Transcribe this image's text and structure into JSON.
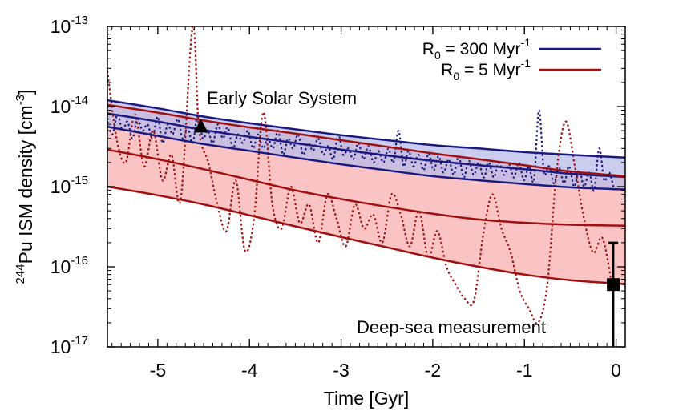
{
  "chart_data": {
    "type": "line",
    "xlabel": "Time [Gyr]",
    "ylabel": {
      "sup": "244",
      "main": "Pu ISM density [cm",
      "exp": "-3",
      "close": "]"
    },
    "xlim": [
      -5.55,
      0.1
    ],
    "ylim": [
      1e-17,
      1e-13
    ],
    "y_scale": "log",
    "grid": false,
    "legend_placement": "top-right",
    "x_ticks": [
      {
        "value": -5,
        "label": "-5"
      },
      {
        "value": -4,
        "label": "-4"
      },
      {
        "value": -3,
        "label": "-3"
      },
      {
        "value": -2,
        "label": "-2"
      },
      {
        "value": -1,
        "label": "-1"
      },
      {
        "value": 0,
        "label": "0"
      }
    ],
    "y_ticks": [
      {
        "value": 1e-17,
        "base": "10",
        "exp": "-17"
      },
      {
        "value": 1e-16,
        "base": "10",
        "exp": "-16"
      },
      {
        "value": 1e-15,
        "base": "10",
        "exp": "-15"
      },
      {
        "value": 1e-14,
        "base": "10",
        "exp": "-14"
      },
      {
        "value": 1e-13,
        "base": "10",
        "exp": "-13"
      }
    ],
    "legend": [
      {
        "base": "R",
        "sub": "0",
        "text": " = 300 Myr",
        "exp": "-1",
        "color": "#1a1a80"
      },
      {
        "base": "R",
        "sub": "0",
        "text": " =     5 Myr",
        "exp": "-1",
        "color": "#a01010"
      }
    ],
    "bands": [
      {
        "series": "R0 = 300 Myr-1",
        "fill": "#b8bce8",
        "stroke": "#1a1a80",
        "x": [
          -5.55,
          -5,
          -4.5,
          -4,
          -3.5,
          -3,
          -2.5,
          -2,
          -1.5,
          -1,
          -0.5,
          0
        ],
        "upper": [
          1.2e-14,
          9.5e-15,
          7.5e-15,
          6.2e-15,
          5.2e-15,
          4.4e-15,
          3.8e-15,
          3.3e-15,
          3e-15,
          2.7e-15,
          2.5e-15,
          2.3e-15
        ],
        "median": [
          8.2e-15,
          6.5e-15,
          5.1e-15,
          4.2e-15,
          3.5e-15,
          2.9e-15,
          2.45e-15,
          2.1e-15,
          1.85e-15,
          1.65e-15,
          1.45e-15,
          1.32e-15
        ],
        "lower": [
          5.6e-15,
          4.3e-15,
          3.4e-15,
          2.8e-15,
          2.3e-15,
          1.9e-15,
          1.6e-15,
          1.35e-15,
          1.2e-15,
          1.08e-15,
          9.8e-16,
          9.2e-16
        ]
      },
      {
        "series": "R0 = 5 Myr-1",
        "fill": "#fbc4c4",
        "stroke": "#a01010",
        "x": [
          -5.55,
          -5,
          -4.5,
          -4,
          -3.5,
          -3,
          -2.5,
          -2,
          -1.5,
          -1,
          -0.5,
          0
        ],
        "upper": [
          1.05e-14,
          8.4e-15,
          6.7e-15,
          5.5e-15,
          4.6e-15,
          3.8e-15,
          3.15e-15,
          2.6e-15,
          2.2e-15,
          1.85e-15,
          1.55e-15,
          1.35e-15
        ],
        "median": [
          2.9e-15,
          2.2e-15,
          1.65e-15,
          1.22e-15,
          9e-16,
          7e-16,
          5.6e-16,
          4.6e-16,
          3.9e-16,
          3.55e-16,
          3.35e-16,
          3.25e-16
        ],
        "lower": [
          1e-15,
          7.8e-16,
          6e-16,
          4.4e-16,
          3.2e-16,
          2.35e-16,
          1.75e-16,
          1.3e-16,
          1e-16,
          8e-17,
          6.8e-17,
          6.1e-17
        ]
      }
    ],
    "dotted_series": [
      {
        "series": "R0 = 300 Myr-1 sample",
        "color": "#1a1a80",
        "x_start": -5.55,
        "x_end": -0.02,
        "values": [
          6.5e-15,
          4.5e-15,
          8e-15,
          5e-15,
          6.5e-15,
          4e-15,
          7e-15,
          5e-15,
          6e-15,
          4e-15,
          7.5e-15,
          3.5e-15,
          6e-15,
          4.5e-15,
          7e-15,
          4e-15,
          5.5e-15,
          3.5e-15,
          8e-15,
          4e-15,
          5e-15,
          3.5e-15,
          6e-15,
          4e-15,
          5.5e-15,
          3e-15,
          4.5e-15,
          3.5e-15,
          5e-15,
          3e-15,
          4.5e-15,
          3e-15,
          4e-15,
          3e-15,
          5e-15,
          2.5e-15,
          4e-15,
          3e-15,
          4.5e-15,
          2.5e-15,
          3.5e-15,
          2.8e-15,
          4e-15,
          2.5e-15,
          3.2e-15,
          2.2e-15,
          4.5e-15,
          2.5e-15,
          3e-15,
          2.2e-15,
          3.5e-15,
          2.2e-15,
          3.2e-15,
          2e-15,
          2.8e-15,
          2e-15,
          3e-15,
          2e-15,
          5e-15,
          1.8e-15,
          2.8e-15,
          1.8e-15,
          2.5e-15,
          1.6e-15,
          2.6e-15,
          1.6e-15,
          2.4e-15,
          1.5e-15,
          2.2e-15,
          1.4e-15,
          2.4e-15,
          1.3e-15,
          2.1e-15,
          1.4e-15,
          2e-15,
          1.3e-15,
          2e-15,
          1.3e-15,
          2e-15,
          1.4e-15,
          1.9e-15,
          1.3e-15,
          2e-15,
          1.2e-15,
          1.8e-15,
          1.2e-15,
          9e-15,
          1.5e-15,
          1.8e-15,
          1.1e-15,
          1.7e-15,
          1.1e-15,
          1.8e-15,
          1e-15,
          1.6e-15,
          1e-15,
          1.5e-15,
          9e-16,
          3e-15,
          1.2e-15,
          1.5e-15,
          9e-16
        ]
      },
      {
        "series": "R0 = 5 Myr-1 sample",
        "color": "#a01010",
        "x": [
          -5.55,
          -5.45,
          -5.35,
          -5.25,
          -5.15,
          -5.05,
          -4.95,
          -4.85,
          -4.75,
          -4.62,
          -4.55,
          -4.45,
          -4.35,
          -4.25,
          -4.15,
          -4.05,
          -3.95,
          -3.85,
          -3.75,
          -3.65,
          -3.55,
          -3.45,
          -3.35,
          -3.25,
          -3.15,
          -3.05,
          -2.95,
          -2.85,
          -2.75,
          -2.65,
          -2.55,
          -2.45,
          -2.35,
          -2.25,
          -2.15,
          -2.05,
          -1.95,
          -1.85,
          -1.75,
          -1.65,
          -1.55,
          -1.45,
          -1.35,
          -1.25,
          -1.15,
          -1.05,
          -0.95,
          -0.85,
          -0.75,
          -0.65,
          -0.55,
          -0.45,
          -0.35,
          -0.25,
          -0.15,
          -0.05
        ],
        "values": [
          2.8e-14,
          4e-15,
          2e-15,
          8e-15,
          1.8e-15,
          5e-15,
          1.2e-15,
          2.5e-15,
          7e-16,
          9.8e-14,
          5e-15,
          2e-15,
          6e-16,
          2.8e-16,
          1.2e-15,
          1.6e-16,
          4e-16,
          8.5e-15,
          6e-16,
          3e-16,
          1e-15,
          3.5e-16,
          6e-16,
          2e-16,
          8e-16,
          4e-16,
          1.8e-16,
          6e-16,
          3e-16,
          4.5e-16,
          2e-16,
          8e-16,
          4.5e-16,
          1.8e-16,
          5e-16,
          1.3e-16,
          2.8e-16,
          1e-16,
          6e-17,
          4e-17,
          3.8e-17,
          2.5e-16,
          8e-16,
          3e-16,
          1.5e-16,
          5e-17,
          3e-17,
          2e-17,
          6e-17,
          1.5e-15,
          6.5e-15,
          1.8e-15,
          4e-16,
          1.5e-16,
          2.3e-16,
          6.5e-17
        ]
      }
    ],
    "annotations": [
      {
        "label": "Early Solar System",
        "marker": "triangle",
        "x": -4.53,
        "y": 5.7e-15,
        "color": "#000000"
      },
      {
        "label": "Deep-sea measurement",
        "marker": "square",
        "x": -0.03,
        "y": 6e-17,
        "y_err_low": 1e-17,
        "y_err_high": 2e-16,
        "color": "#000000"
      }
    ]
  }
}
